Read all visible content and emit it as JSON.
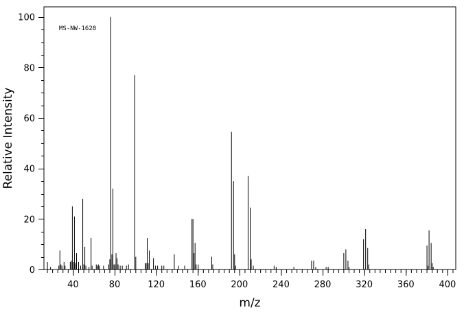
{
  "chart_data": {
    "type": "bar",
    "subtype": "mass-spectrum",
    "title": "",
    "annotation": "MS-NW-1628",
    "xlabel": "m/z",
    "ylabel": "Relative Intensity",
    "xlim": [
      12,
      408
    ],
    "ylim": [
      0,
      104
    ],
    "xticks": [
      40,
      80,
      120,
      160,
      200,
      240,
      280,
      320,
      360,
      400
    ],
    "yticks": [
      0,
      20,
      40,
      60,
      80,
      100
    ],
    "x_minor_step": 5,
    "y_minor_step": 5,
    "grid": false,
    "legend": "none",
    "bar_color": "#000000",
    "peaks": [
      [
        15,
        3
      ],
      [
        18,
        1
      ],
      [
        26,
        1.5
      ],
      [
        27,
        7.5
      ],
      [
        28,
        2
      ],
      [
        29,
        1.5
      ],
      [
        31,
        3
      ],
      [
        32,
        1.5
      ],
      [
        37,
        3
      ],
      [
        38,
        3.5
      ],
      [
        39,
        25
      ],
      [
        40,
        3
      ],
      [
        41,
        21
      ],
      [
        42,
        2.5
      ],
      [
        43,
        6.5
      ],
      [
        45,
        3
      ],
      [
        47,
        1.5
      ],
      [
        49,
        28
      ],
      [
        50,
        2
      ],
      [
        51,
        9
      ],
      [
        52,
        1.5
      ],
      [
        55,
        1
      ],
      [
        57,
        12.5
      ],
      [
        58,
        1.5
      ],
      [
        62,
        2
      ],
      [
        63,
        1.5
      ],
      [
        64,
        2
      ],
      [
        65,
        1.5
      ],
      [
        69,
        1.5
      ],
      [
        74,
        2
      ],
      [
        75,
        4
      ],
      [
        76,
        100
      ],
      [
        77,
        6
      ],
      [
        78,
        32
      ],
      [
        79,
        2
      ],
      [
        80,
        2
      ],
      [
        81,
        6.5
      ],
      [
        82,
        4.5
      ],
      [
        83,
        2
      ],
      [
        85,
        1.5
      ],
      [
        87,
        1.5
      ],
      [
        91,
        1.5
      ],
      [
        93,
        2
      ],
      [
        99,
        77
      ],
      [
        100,
        5
      ],
      [
        109,
        2.5
      ],
      [
        110,
        2.5
      ],
      [
        111,
        12.5
      ],
      [
        112,
        2.5
      ],
      [
        113,
        7.5
      ],
      [
        117,
        4.5
      ],
      [
        119,
        1.5
      ],
      [
        121,
        1.5
      ],
      [
        125,
        1.5
      ],
      [
        127,
        1.5
      ],
      [
        137,
        6
      ],
      [
        141,
        1.5
      ],
      [
        147,
        1.5
      ],
      [
        154,
        20
      ],
      [
        155,
        20
      ],
      [
        156,
        6.5
      ],
      [
        157,
        10.5
      ],
      [
        158,
        2
      ],
      [
        160,
        2
      ],
      [
        173,
        5
      ],
      [
        174,
        2
      ],
      [
        192,
        54.5
      ],
      [
        194,
        35
      ],
      [
        195,
        6
      ],
      [
        196,
        1.5
      ],
      [
        208,
        37
      ],
      [
        210,
        24.5
      ],
      [
        211,
        4
      ],
      [
        213,
        1.5
      ],
      [
        233,
        1.5
      ],
      [
        235,
        1
      ],
      [
        252,
        1
      ],
      [
        269,
        3.5
      ],
      [
        271,
        3.5
      ],
      [
        273,
        1
      ],
      [
        283,
        1
      ],
      [
        285,
        1
      ],
      [
        300,
        6.5
      ],
      [
        302,
        8
      ],
      [
        304,
        3.5
      ],
      [
        305,
        1
      ],
      [
        319,
        12
      ],
      [
        321,
        16
      ],
      [
        323,
        8.5
      ],
      [
        324,
        2
      ],
      [
        380,
        9.5
      ],
      [
        381,
        1.5
      ],
      [
        382,
        15.5
      ],
      [
        384,
        10.5
      ],
      [
        385,
        2.5
      ],
      [
        386,
        1
      ]
    ]
  }
}
